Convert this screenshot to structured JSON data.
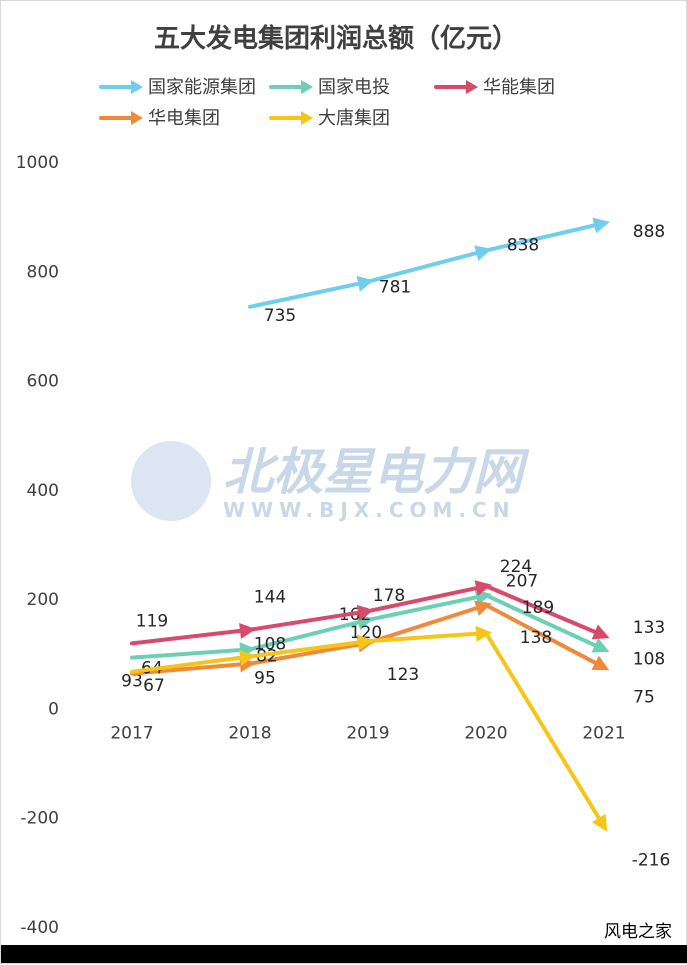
{
  "chart_data": {
    "type": "line",
    "title": "五大发电集团利润总额（亿元）",
    "categories": [
      "2017",
      "2018",
      "2019",
      "2020",
      "2021"
    ],
    "ylim": [
      -400,
      1000
    ],
    "yticks": [
      "1000",
      "800",
      "600",
      "400",
      "200",
      "0",
      "-200",
      "-400"
    ],
    "grid": false,
    "legend_position": "top",
    "series": [
      {
        "name": "国家能源集团",
        "color": "#6fcdee",
        "values": [
          null,
          735,
          781,
          838,
          888
        ]
      },
      {
        "name": "国家电投",
        "color": "#6dcfb3",
        "values": [
          93,
          108,
          162,
          207,
          108
        ]
      },
      {
        "name": "华能集团",
        "color": "#d94a6a",
        "values": [
          119,
          144,
          178,
          224,
          133
        ]
      },
      {
        "name": "华电集团",
        "color": "#ef8a3a",
        "values": [
          64,
          82,
          120,
          189,
          75
        ]
      },
      {
        "name": "大唐集团",
        "color": "#f5c518",
        "values": [
          67,
          95,
          123,
          138,
          -216
        ]
      }
    ]
  },
  "watermark": {
    "text": "北极星电力网",
    "sub": "WWW.BJX.COM.CN"
  },
  "credit": "风电之家"
}
